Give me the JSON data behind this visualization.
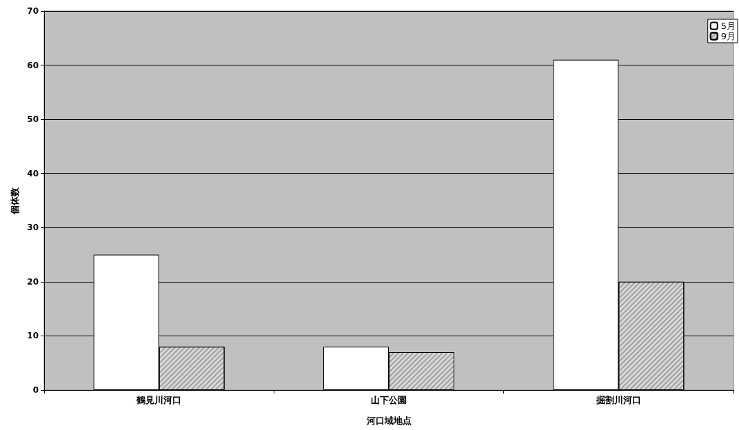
{
  "chart_data": {
    "type": "bar",
    "xlabel": "河口域地点",
    "ylabel": "個体数",
    "categories": [
      "鶴見川河口",
      "山下公園",
      "掘割川河口"
    ],
    "series": [
      {
        "name": "5月",
        "color": "#ffffff",
        "values": [
          25,
          8,
          61
        ]
      },
      {
        "name": "9月",
        "color": "#d9d9d9",
        "values": [
          8,
          7,
          20
        ]
      }
    ],
    "ylim": [
      0,
      70
    ],
    "yticks": [
      0,
      10,
      20,
      30,
      40,
      50,
      60,
      70
    ],
    "grid": "y",
    "legend": "top right"
  }
}
